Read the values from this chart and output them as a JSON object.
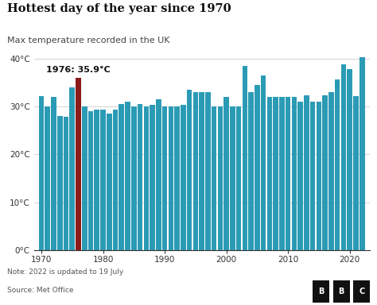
{
  "title": "Hottest day of the year since 1970",
  "subtitle": "Max temperature recorded in the UK",
  "note": "Note: 2022 is updated to 19 July",
  "source": "Source: Met Office",
  "bbc_logo": "BBC",
  "bar_color": "#2b9bb5",
  "highlight_color": "#8b1a1a",
  "highlight_year": 1976,
  "annotation": "1976: 35.9°C",
  "background_color": "#ffffff",
  "ylim": [
    0,
    42
  ],
  "yticks": [
    0,
    10,
    20,
    30,
    40
  ],
  "ytick_labels": [
    "0°C",
    "10°C",
    "20°C",
    "30°C",
    "40°C"
  ],
  "years": [
    1970,
    1971,
    1972,
    1973,
    1974,
    1975,
    1976,
    1977,
    1978,
    1979,
    1980,
    1981,
    1982,
    1983,
    1984,
    1985,
    1986,
    1987,
    1988,
    1989,
    1990,
    1991,
    1992,
    1993,
    1994,
    1995,
    1996,
    1997,
    1998,
    1999,
    2000,
    2001,
    2002,
    2003,
    2004,
    2005,
    2006,
    2007,
    2008,
    2009,
    2010,
    2011,
    2012,
    2013,
    2014,
    2015,
    2016,
    2017,
    2018,
    2019,
    2020,
    2021,
    2022
  ],
  "values": [
    32.2,
    29.9,
    32.0,
    28.0,
    27.8,
    34.0,
    35.9,
    30.0,
    29.0,
    29.3,
    29.3,
    28.5,
    29.3,
    30.5,
    31.0,
    30.0,
    30.5,
    30.0,
    30.3,
    31.5,
    30.0,
    30.0,
    30.0,
    30.3,
    33.5,
    33.0,
    33.0,
    33.0,
    30.0,
    30.0,
    32.0,
    30.0,
    30.0,
    38.5,
    33.0,
    34.5,
    36.5,
    32.0,
    32.0,
    32.0,
    32.0,
    32.0,
    31.0,
    32.3,
    31.0,
    31.0,
    32.3,
    33.0,
    35.6,
    38.7,
    37.8,
    32.2,
    40.3
  ]
}
